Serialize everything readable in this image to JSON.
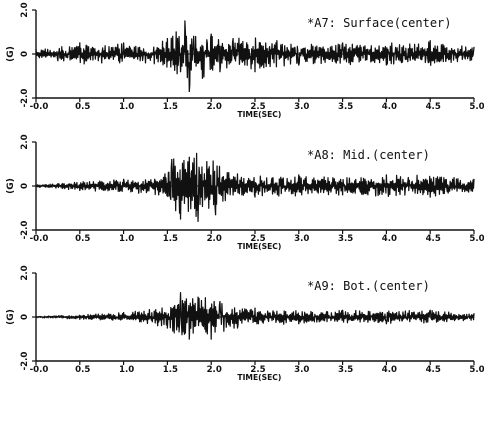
{
  "chart_data": [
    {
      "type": "line",
      "title": "*A7: Surface(center)",
      "ylabel": "(G)",
      "xlabel": "TIME(SEC)",
      "xlim": [
        0,
        5
      ],
      "ylim": [
        -2,
        2
      ],
      "xtick_labels": [
        "-0.0",
        "0.5",
        "1.0",
        "1.5",
        "2.0",
        "2.5",
        "3.0",
        "3.5",
        "4.0",
        "4.5",
        "5.0"
      ],
      "ytick_labels": [
        "2.0",
        "0",
        "-2.0"
      ],
      "series": [
        {
          "x": [
            0,
            0.25,
            0.5,
            0.75,
            1.0,
            1.25,
            1.5,
            1.6,
            1.65,
            1.7,
            1.75,
            1.8,
            1.9,
            2.0,
            2.1,
            2.25,
            2.5,
            2.75,
            3.0,
            3.5,
            4.0,
            4.5,
            5.0
          ],
          "values": [
            0.2,
            -0.3,
            0.5,
            -0.4,
            0.5,
            -0.4,
            0.7,
            1.0,
            -0.8,
            1.5,
            -1.7,
            0.8,
            -1.1,
            0.9,
            -0.8,
            0.7,
            -0.8,
            0.6,
            -0.5,
            0.5,
            -0.5,
            0.6,
            0.3
          ]
        }
      ]
    },
    {
      "type": "line",
      "title": "*A8: Mid.(center)",
      "ylabel": "(G)",
      "xlabel": "TIME(SEC)",
      "xlim": [
        0,
        5
      ],
      "ylim": [
        -2,
        2
      ],
      "xtick_labels": [
        "-0.0",
        "0.5",
        "1.0",
        "1.5",
        "2.0",
        "2.5",
        "3.0",
        "3.5",
        "4.0",
        "4.5",
        "5.0"
      ],
      "ytick_labels": [
        "2.0",
        "0",
        "-2.0"
      ],
      "series": [
        {
          "x": [
            0,
            0.5,
            1.0,
            1.4,
            1.55,
            1.65,
            1.75,
            1.85,
            1.95,
            2.05,
            2.2,
            2.5,
            3.0,
            3.5,
            4.0,
            4.5,
            5.0
          ],
          "values": [
            0.05,
            -0.2,
            0.3,
            -0.4,
            1.2,
            -1.5,
            1.3,
            -1.6,
            1.1,
            -1.3,
            0.6,
            -0.5,
            0.5,
            -0.4,
            0.5,
            -0.5,
            0.3
          ]
        }
      ]
    },
    {
      "type": "line",
      "title": "*A9: Bot.(center)",
      "ylabel": "(G)",
      "xlabel": "TIME(SEC)",
      "xlim": [
        0,
        5
      ],
      "ylim": [
        -2,
        2
      ],
      "xtick_labels": [
        "-0.0",
        "0.5",
        "1.0",
        "1.5",
        "2.0",
        "2.5",
        "3.0",
        "3.5",
        "4.0",
        "4.5",
        "5.0"
      ],
      "ytick_labels": [
        "2.0",
        "0",
        "-2.0"
      ],
      "series": [
        {
          "x": [
            0,
            0.5,
            1.0,
            1.5,
            1.65,
            1.75,
            1.85,
            2.0,
            2.1,
            2.3,
            2.5,
            3.0,
            3.5,
            4.0,
            4.5,
            5.0
          ],
          "values": [
            0.03,
            -0.1,
            0.2,
            -0.5,
            1.1,
            -1.0,
            0.9,
            -1.0,
            0.7,
            -0.5,
            0.4,
            -0.3,
            0.3,
            -0.3,
            0.3,
            0.15
          ]
        }
      ]
    }
  ]
}
